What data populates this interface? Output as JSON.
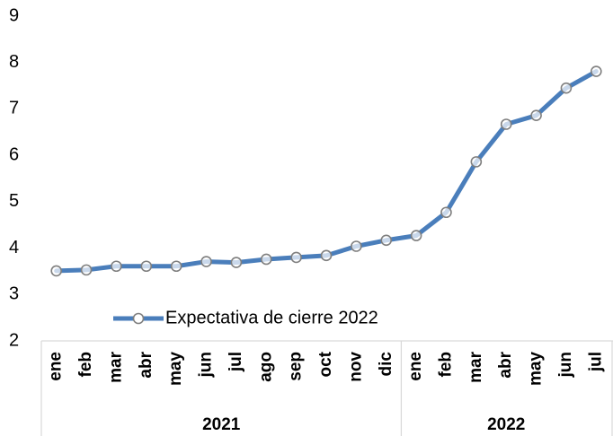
{
  "chart_data": {
    "type": "line",
    "groups": [
      {
        "label": "2021",
        "categories": [
          "ene",
          "feb",
          "mar",
          "abr",
          "may",
          "jun",
          "jul",
          "ago",
          "sep",
          "oct",
          "nov",
          "dic"
        ]
      },
      {
        "label": "2022",
        "categories": [
          "ene",
          "feb",
          "mar",
          "abr",
          "may",
          "jun",
          "jul"
        ]
      }
    ],
    "series": [
      {
        "name": "Expectativa de cierre 2022",
        "color": "#4a7ebb",
        "values": [
          3.51,
          3.53,
          3.61,
          3.61,
          3.61,
          3.71,
          3.69,
          3.76,
          3.8,
          3.84,
          4.04,
          4.17,
          4.27,
          4.77,
          5.86,
          6.67,
          6.86,
          7.45,
          7.81
        ]
      }
    ],
    "ylim": [
      2,
      9
    ],
    "yticks": [
      2,
      3,
      4,
      5,
      6,
      7,
      8,
      9
    ],
    "grid": false,
    "legend": "lower left"
  }
}
